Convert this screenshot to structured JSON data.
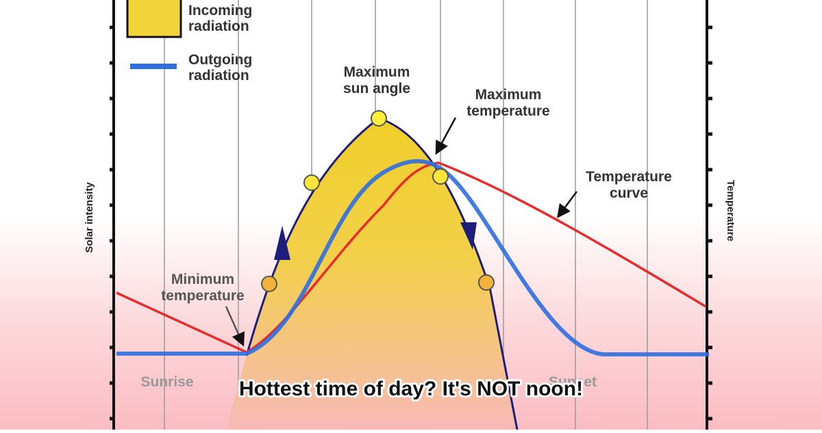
{
  "legend": [
    {
      "label": [
        "Incoming",
        "radiation"
      ]
    },
    {
      "label": [
        "Outgoing",
        "radiation"
      ]
    }
  ],
  "annotations": {
    "max_sun": [
      "Maximum",
      "sun angle"
    ],
    "max_temp": [
      "Maximum",
      "temperature"
    ],
    "temp_curve": [
      "Temperature",
      "curve"
    ],
    "min_temp": [
      "Minimum",
      "temperature"
    ],
    "sunrise": "Sunrise",
    "sunset": "Sunset"
  },
  "axes": {
    "left": "Solar intensity",
    "right": "Temperature"
  },
  "caption": "Hottest time of day?  It's NOT noon!"
}
